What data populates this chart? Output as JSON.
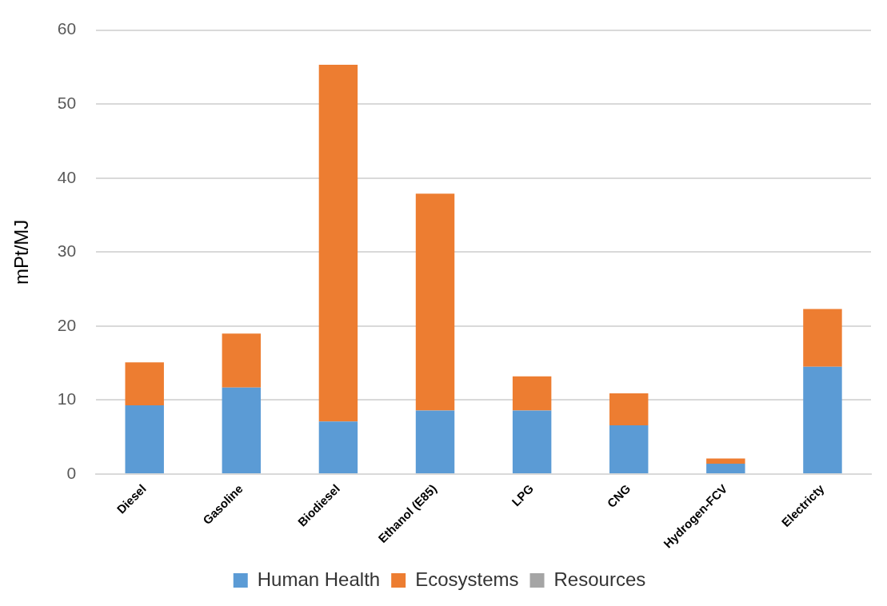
{
  "chart_data": {
    "type": "bar",
    "stacked": true,
    "ylabel": "mPt/MJ",
    "categories": [
      "Diesel",
      "Gasoline",
      "Biodiesel",
      "Ethanol (E85)",
      "LPG",
      "CNG",
      "Hydrogen-FCV",
      "Electricty"
    ],
    "series": [
      {
        "name": "Human Health",
        "color": "#5b9bd5",
        "values": [
          9.3,
          11.7,
          7.1,
          8.6,
          8.6,
          6.6,
          1.4,
          14.5
        ]
      },
      {
        "name": "Ecosystems",
        "color": "#ed7d31",
        "values": [
          5.8,
          7.3,
          48.2,
          29.3,
          4.6,
          4.3,
          0.7,
          7.8
        ]
      },
      {
        "name": "Resources",
        "color": "#a5a5a5",
        "values": [
          0,
          0,
          0,
          0,
          0,
          0,
          0,
          0
        ]
      }
    ],
    "ylim": [
      0,
      60
    ],
    "yticks": [
      0,
      10,
      20,
      30,
      40,
      50,
      60
    ],
    "grid": "y",
    "legend": "bottom"
  }
}
